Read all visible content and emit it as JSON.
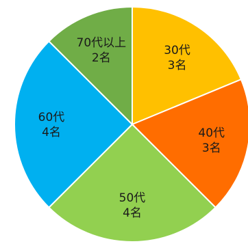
{
  "chart_data": {
    "type": "pie",
    "title": "",
    "start": "top",
    "direction": "clockwise",
    "slices": [
      {
        "name": "30代",
        "value": 3,
        "label_lines": [
          "30代",
          "3名"
        ],
        "color": "#FFC000"
      },
      {
        "name": "40代",
        "value": 3,
        "label_lines": [
          "40代",
          "3名"
        ],
        "color": "#FF6D00"
      },
      {
        "name": "50代",
        "value": 4,
        "label_lines": [
          "50代",
          "4名"
        ],
        "color": "#92D050"
      },
      {
        "name": "60代",
        "value": 4,
        "label_lines": [
          "60代",
          "4名"
        ],
        "color": "#00B0F0"
      },
      {
        "name": "70代以上",
        "value": 2,
        "label_lines": [
          "70代以上",
          "2名"
        ],
        "color": "#70AD47"
      }
    ],
    "slice_border_color": "#ffffff"
  }
}
